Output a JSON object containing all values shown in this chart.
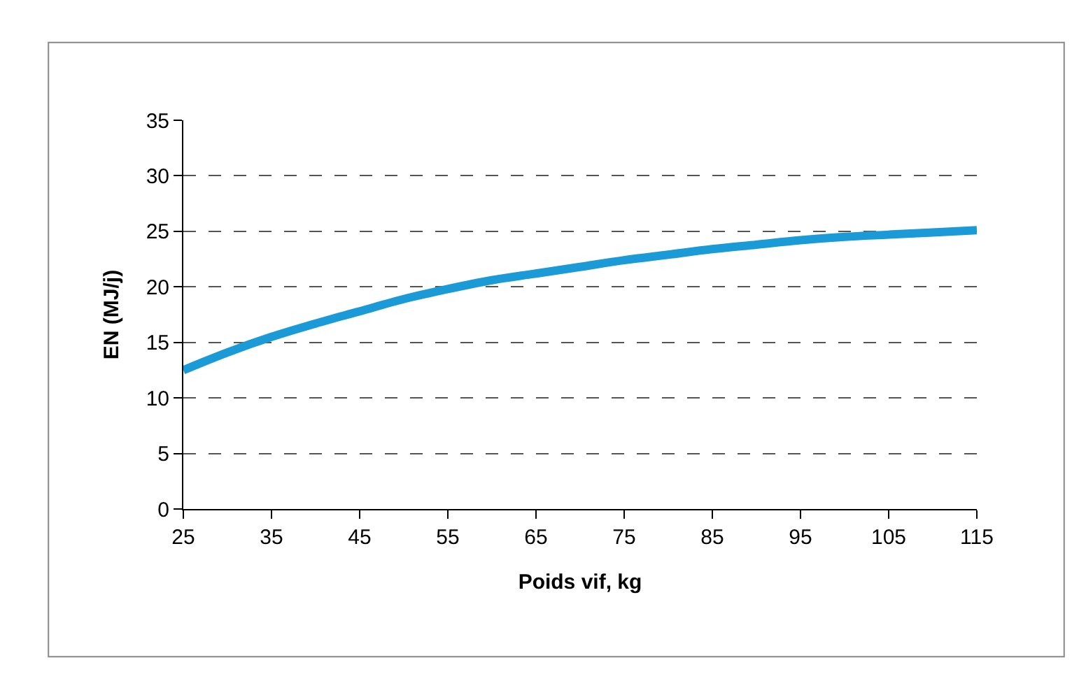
{
  "chart_data": {
    "type": "line",
    "xlabel": "Poids vif, kg",
    "ylabel": "EN (MJ/j)",
    "x": [
      25,
      30,
      35,
      40,
      45,
      50,
      55,
      60,
      65,
      70,
      75,
      80,
      85,
      90,
      95,
      100,
      105,
      110,
      115
    ],
    "series": [
      {
        "color": "#1a9ad6",
        "values": [
          12.5,
          14.1,
          15.5,
          16.7,
          17.8,
          18.9,
          19.8,
          20.6,
          21.2,
          21.8,
          22.4,
          22.9,
          23.4,
          23.8,
          24.2,
          24.5,
          24.7,
          24.9,
          25.1
        ]
      }
    ],
    "xlim": [
      25,
      115
    ],
    "xticks": [
      25,
      35,
      45,
      55,
      65,
      75,
      85,
      95,
      105,
      115
    ],
    "ylim": [
      0,
      35
    ],
    "yticks": [
      0,
      5,
      10,
      15,
      20,
      25,
      30,
      35
    ],
    "grid": "y",
    "legend": false,
    "marker": "none",
    "line_style": "solid"
  }
}
